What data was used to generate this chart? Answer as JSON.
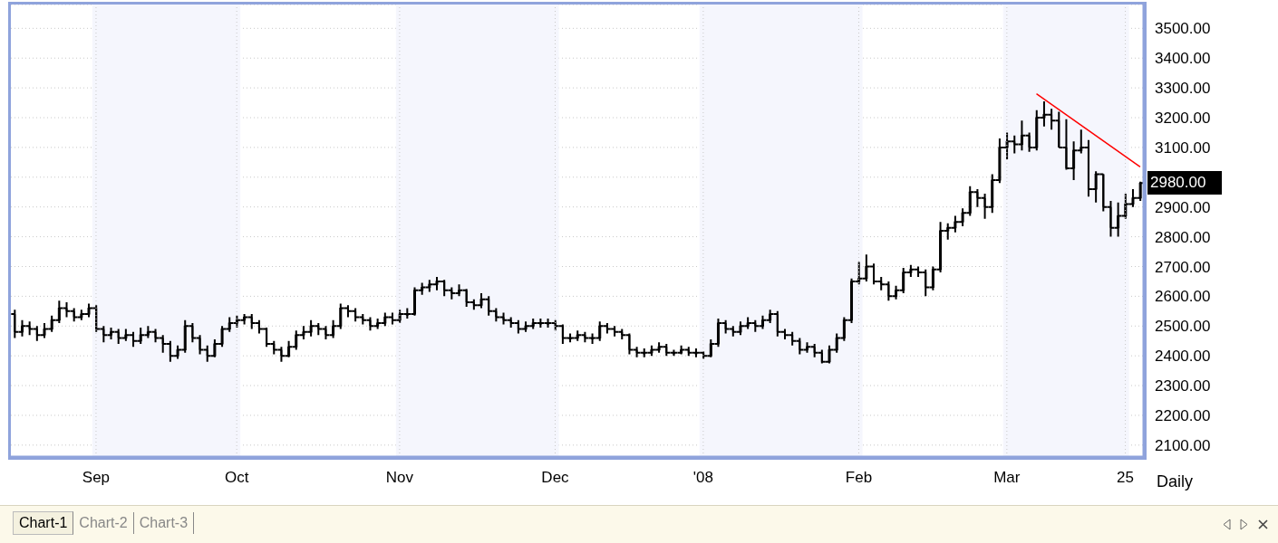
{
  "chart_data": {
    "type": "candlestick",
    "categories": [
      null,
      null,
      null,
      null,
      null,
      null,
      null,
      null,
      null,
      null,
      null,
      "Sep",
      null,
      null,
      null,
      null,
      null,
      null,
      null,
      null,
      null,
      null,
      null,
      null,
      null,
      null,
      null,
      null,
      null,
      null,
      "Oct",
      null,
      null,
      null,
      null,
      null,
      null,
      null,
      null,
      null,
      null,
      null,
      null,
      null,
      null,
      null,
      null,
      null,
      null,
      null,
      null,
      null,
      "Nov",
      null,
      null,
      null,
      null,
      null,
      null,
      null,
      null,
      null,
      null,
      null,
      null,
      null,
      null,
      null,
      null,
      null,
      null,
      null,
      null,
      "Dec",
      null,
      null,
      null,
      null,
      null,
      null,
      null,
      null,
      null,
      null,
      null,
      null,
      null,
      null,
      null,
      null,
      null,
      null,
      null,
      "'08",
      null,
      null,
      null,
      null,
      null,
      null,
      null,
      null,
      null,
      null,
      null,
      null,
      null,
      null,
      null,
      null,
      null,
      null,
      null,
      null,
      "Feb",
      null,
      null,
      null,
      null,
      null,
      null,
      null,
      null,
      null,
      null,
      null,
      null,
      null,
      null,
      null,
      null,
      null,
      null,
      null,
      "Mar",
      null,
      null,
      null,
      null,
      null,
      null,
      null,
      null,
      null,
      null,
      null,
      null,
      null,
      null,
      null,
      "25",
      null,
      null
    ],
    "color": "#000000",
    "ohlc": [
      [
        2540,
        2555,
        2460,
        2480
      ],
      [
        2480,
        2520,
        2465,
        2500
      ],
      [
        2500,
        2515,
        2470,
        2490
      ],
      [
        2490,
        2500,
        2450,
        2470
      ],
      [
        2470,
        2510,
        2460,
        2490
      ],
      [
        2490,
        2535,
        2480,
        2520
      ],
      [
        2520,
        2585,
        2510,
        2560
      ],
      [
        2560,
        2580,
        2530,
        2550
      ],
      [
        2550,
        2560,
        2515,
        2530
      ],
      [
        2530,
        2555,
        2520,
        2540
      ],
      [
        2540,
        2575,
        2530,
        2560
      ],
      [
        2560,
        2570,
        2480,
        2490
      ],
      [
        2490,
        2500,
        2445,
        2470
      ],
      [
        2470,
        2495,
        2455,
        2480
      ],
      [
        2480,
        2490,
        2440,
        2460
      ],
      [
        2460,
        2490,
        2450,
        2470
      ],
      [
        2470,
        2480,
        2430,
        2450
      ],
      [
        2450,
        2495,
        2440,
        2470
      ],
      [
        2470,
        2500,
        2460,
        2480
      ],
      [
        2480,
        2490,
        2445,
        2460
      ],
      [
        2460,
        2470,
        2410,
        2440
      ],
      [
        2440,
        2450,
        2380,
        2400
      ],
      [
        2400,
        2435,
        2390,
        2420
      ],
      [
        2420,
        2520,
        2410,
        2500
      ],
      [
        2500,
        2510,
        2445,
        2460
      ],
      [
        2460,
        2470,
        2405,
        2420
      ],
      [
        2420,
        2435,
        2380,
        2400
      ],
      [
        2400,
        2455,
        2395,
        2440
      ],
      [
        2440,
        2500,
        2430,
        2490
      ],
      [
        2490,
        2530,
        2480,
        2510
      ],
      [
        2510,
        2535,
        2495,
        2520
      ],
      [
        2520,
        2540,
        2505,
        2530
      ],
      [
        2530,
        2540,
        2490,
        2510
      ],
      [
        2510,
        2520,
        2475,
        2490
      ],
      [
        2490,
        2495,
        2430,
        2440
      ],
      [
        2440,
        2450,
        2405,
        2420
      ],
      [
        2420,
        2430,
        2380,
        2400
      ],
      [
        2400,
        2450,
        2395,
        2430
      ],
      [
        2430,
        2485,
        2420,
        2470
      ],
      [
        2470,
        2500,
        2455,
        2480
      ],
      [
        2480,
        2520,
        2465,
        2500
      ],
      [
        2500,
        2510,
        2470,
        2490
      ],
      [
        2490,
        2500,
        2455,
        2470
      ],
      [
        2470,
        2520,
        2460,
        2500
      ],
      [
        2500,
        2575,
        2490,
        2560
      ],
      [
        2560,
        2570,
        2530,
        2550
      ],
      [
        2550,
        2560,
        2515,
        2530
      ],
      [
        2530,
        2540,
        2505,
        2520
      ],
      [
        2520,
        2530,
        2485,
        2500
      ],
      [
        2500,
        2525,
        2490,
        2510
      ],
      [
        2510,
        2545,
        2500,
        2530
      ],
      [
        2530,
        2545,
        2505,
        2520
      ],
      [
        2520,
        2555,
        2510,
        2540
      ],
      [
        2540,
        2560,
        2525,
        2540
      ],
      [
        2540,
        2630,
        2535,
        2620
      ],
      [
        2620,
        2645,
        2605,
        2630
      ],
      [
        2630,
        2655,
        2615,
        2640
      ],
      [
        2640,
        2665,
        2620,
        2650
      ],
      [
        2650,
        2655,
        2600,
        2620
      ],
      [
        2620,
        2630,
        2590,
        2610
      ],
      [
        2610,
        2640,
        2600,
        2620
      ],
      [
        2620,
        2625,
        2565,
        2580
      ],
      [
        2580,
        2590,
        2555,
        2570
      ],
      [
        2570,
        2610,
        2560,
        2590
      ],
      [
        2590,
        2600,
        2535,
        2550
      ],
      [
        2550,
        2560,
        2515,
        2530
      ],
      [
        2530,
        2545,
        2505,
        2520
      ],
      [
        2520,
        2530,
        2495,
        2510
      ],
      [
        2510,
        2520,
        2475,
        2490
      ],
      [
        2490,
        2515,
        2480,
        2500
      ],
      [
        2500,
        2525,
        2490,
        2510
      ],
      [
        2510,
        2525,
        2495,
        2510
      ],
      [
        2510,
        2525,
        2495,
        2510
      ],
      [
        2510,
        2520,
        2485,
        2500
      ],
      [
        2500,
        2505,
        2440,
        2460
      ],
      [
        2460,
        2475,
        2445,
        2460
      ],
      [
        2460,
        2485,
        2450,
        2470
      ],
      [
        2470,
        2480,
        2445,
        2460
      ],
      [
        2460,
        2475,
        2440,
        2460
      ],
      [
        2460,
        2515,
        2450,
        2500
      ],
      [
        2500,
        2510,
        2475,
        2490
      ],
      [
        2490,
        2500,
        2465,
        2480
      ],
      [
        2480,
        2490,
        2455,
        2470
      ],
      [
        2470,
        2475,
        2405,
        2420
      ],
      [
        2420,
        2430,
        2395,
        2410
      ],
      [
        2410,
        2425,
        2395,
        2410
      ],
      [
        2410,
        2435,
        2400,
        2420
      ],
      [
        2420,
        2445,
        2410,
        2430
      ],
      [
        2430,
        2440,
        2400,
        2410
      ],
      [
        2410,
        2420,
        2400,
        2410
      ],
      [
        2410,
        2435,
        2405,
        2420
      ],
      [
        2420,
        2430,
        2400,
        2410
      ],
      [
        2410,
        2425,
        2395,
        2410
      ],
      [
        2410,
        2415,
        2390,
        2400
      ],
      [
        2400,
        2455,
        2395,
        2440
      ],
      [
        2440,
        2525,
        2430,
        2510
      ],
      [
        2510,
        2520,
        2475,
        2490
      ],
      [
        2490,
        2500,
        2465,
        2480
      ],
      [
        2480,
        2515,
        2470,
        2500
      ],
      [
        2500,
        2530,
        2490,
        2510
      ],
      [
        2510,
        2520,
        2480,
        2500
      ],
      [
        2500,
        2535,
        2490,
        2520
      ],
      [
        2520,
        2555,
        2510,
        2540
      ],
      [
        2540,
        2550,
        2465,
        2480
      ],
      [
        2480,
        2490,
        2455,
        2470
      ],
      [
        2470,
        2480,
        2435,
        2450
      ],
      [
        2450,
        2460,
        2405,
        2420
      ],
      [
        2420,
        2445,
        2410,
        2430
      ],
      [
        2430,
        2440,
        2395,
        2410
      ],
      [
        2410,
        2420,
        2375,
        2380
      ],
      [
        2380,
        2435,
        2375,
        2420
      ],
      [
        2420,
        2475,
        2410,
        2460
      ],
      [
        2460,
        2530,
        2450,
        2520
      ],
      [
        2520,
        2660,
        2510,
        2650
      ],
      [
        2650,
        2715,
        2640,
        2660
      ],
      [
        2660,
        2740,
        2650,
        2700
      ],
      [
        2700,
        2710,
        2640,
        2650
      ],
      [
        2650,
        2665,
        2620,
        2640
      ],
      [
        2640,
        2650,
        2585,
        2600
      ],
      [
        2600,
        2635,
        2590,
        2620
      ],
      [
        2620,
        2695,
        2610,
        2680
      ],
      [
        2680,
        2705,
        2665,
        2690
      ],
      [
        2690,
        2700,
        2665,
        2680
      ],
      [
        2680,
        2690,
        2600,
        2630
      ],
      [
        2630,
        2700,
        2620,
        2690
      ],
      [
        2690,
        2850,
        2680,
        2820
      ],
      [
        2820,
        2845,
        2790,
        2830
      ],
      [
        2830,
        2870,
        2815,
        2850
      ],
      [
        2850,
        2895,
        2835,
        2880
      ],
      [
        2880,
        2970,
        2870,
        2950
      ],
      [
        2950,
        2960,
        2900,
        2930
      ],
      [
        2930,
        2945,
        2860,
        2900
      ],
      [
        2900,
        3010,
        2880,
        2990
      ],
      [
        2990,
        3130,
        2980,
        3100
      ],
      [
        3100,
        3150,
        3060,
        3120
      ],
      [
        3120,
        3140,
        3080,
        3110
      ],
      [
        3110,
        3190,
        3090,
        3140
      ],
      [
        3140,
        3150,
        3085,
        3100
      ],
      [
        3100,
        3225,
        3090,
        3200
      ],
      [
        3200,
        3255,
        3170,
        3210
      ],
      [
        3210,
        3230,
        3160,
        3190
      ],
      [
        3190,
        3220,
        3100,
        3100
      ],
      [
        3100,
        3195,
        3025,
        3030
      ],
      [
        3030,
        3120,
        2990,
        3090
      ],
      [
        3090,
        3160,
        3080,
        3100
      ],
      [
        3100,
        3125,
        2935,
        2960
      ],
      [
        2960,
        3020,
        2915,
        3010
      ],
      [
        3010,
        3010,
        2885,
        2900
      ],
      [
        2900,
        2920,
        2800,
        2830
      ],
      [
        2830,
        2915,
        2800,
        2870
      ],
      [
        2870,
        2945,
        2860,
        2910
      ],
      [
        2910,
        2960,
        2900,
        2930
      ],
      [
        2930,
        2985,
        2920,
        2980
      ]
    ],
    "series": [
      {
        "type": "line",
        "color": "#ff0000",
        "values": [
          null,
          null,
          null,
          null,
          null,
          null,
          null,
          null,
          null,
          null,
          null,
          null,
          null,
          null,
          null,
          null,
          null,
          null,
          null,
          null,
          null,
          null,
          null,
          null,
          null,
          null,
          null,
          null,
          null,
          null,
          null,
          null,
          null,
          null,
          null,
          null,
          null,
          null,
          null,
          null,
          null,
          null,
          null,
          null,
          null,
          null,
          null,
          null,
          null,
          null,
          null,
          null,
          null,
          null,
          null,
          null,
          null,
          null,
          null,
          null,
          null,
          null,
          null,
          null,
          null,
          null,
          null,
          null,
          null,
          null,
          null,
          null,
          null,
          null,
          null,
          null,
          null,
          null,
          null,
          null,
          null,
          null,
          null,
          null,
          null,
          null,
          null,
          null,
          null,
          null,
          null,
          null,
          null,
          null,
          null,
          null,
          null,
          null,
          null,
          null,
          null,
          null,
          null,
          null,
          null,
          null,
          null,
          null,
          null,
          null,
          null,
          null,
          null,
          null,
          null,
          null,
          null,
          null,
          null,
          null,
          null,
          null,
          null,
          null,
          null,
          null,
          null,
          null,
          null,
          null,
          null,
          null,
          null,
          null,
          null,
          null,
          null,
          null,
          3280,
          null,
          null,
          null,
          null,
          null,
          null,
          null,
          null,
          null,
          null,
          null,
          null,
          null,
          3035
        ]
      }
    ],
    "ylim": [
      2060,
      3580
    ],
    "yticks": [
      {
        "value": 2100,
        "label": "2100.00"
      },
      {
        "value": 2200,
        "label": "2200.00"
      },
      {
        "value": 2300,
        "label": "2300.00"
      },
      {
        "value": 2400,
        "label": "2400.00"
      },
      {
        "value": 2500,
        "label": "2500.00"
      },
      {
        "value": 2600,
        "label": "2600.00"
      },
      {
        "value": 2700,
        "label": "2700.00"
      },
      {
        "value": 2800,
        "label": "2800.00"
      },
      {
        "value": 2900,
        "label": "2900.00"
      },
      {
        "value": 3000,
        "label": null
      },
      {
        "value": 3100,
        "label": "3100.00"
      },
      {
        "value": 3200,
        "label": "3200.00"
      },
      {
        "value": 3300,
        "label": "3300.00"
      },
      {
        "value": 3400,
        "label": "3400.00"
      },
      {
        "value": 3500,
        "label": "3500.00"
      }
    ],
    "bands": [
      {
        "axis": "x",
        "from": "Sep",
        "to": "Oct",
        "color": "#f5f6fd"
      },
      {
        "axis": "x",
        "from": "Nov",
        "to": "Dec",
        "color": "#f5f6fd"
      },
      {
        "axis": "x",
        "from": "'08",
        "to": "Feb",
        "color": "#f5f6fd"
      },
      {
        "axis": "x",
        "from": "Mar",
        "to": "25",
        "color": "#f5f6fd"
      }
    ],
    "grid": true,
    "annotations": [
      "2980.00",
      "Daily",
      "Chart-1",
      "Chart-2",
      "Chart-3"
    ]
  }
}
